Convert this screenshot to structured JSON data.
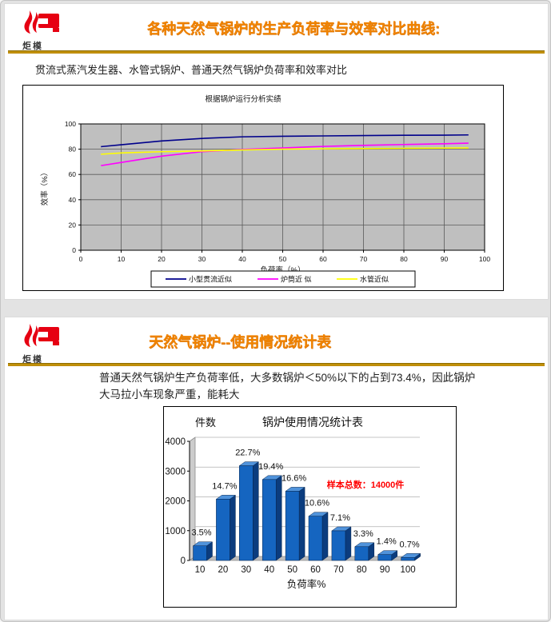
{
  "logo": {
    "name": "炬橂",
    "color": "#E60012"
  },
  "slide1": {
    "title": "各种天然气锅炉的生产负荷率与效率对比曲线:",
    "title_color": "#F08300",
    "underline_color": "#B8860B",
    "subtitle": "贯流式蒸汽发生器、水管式锅炉、普通天然气锅炉负荷率和效率对比"
  },
  "slide2": {
    "title": "天然气锅炉--使用情况统计表",
    "body": "普通天然气锅炉生产负荷率低，大多数锅炉＜50%以下的占到73.4%，因此锅炉大马拉小车现象严重，能耗大"
  },
  "chart_data": [
    {
      "type": "line",
      "title": "根据锅炉运行分析实绩",
      "xlabel": "负荷率（%）",
      "ylabel": "效率（%）",
      "xlim": [
        0,
        100
      ],
      "ylim": [
        0,
        100
      ],
      "xticks": [
        0,
        10,
        20,
        30,
        40,
        50,
        60,
        70,
        80,
        90,
        100
      ],
      "yticks": [
        0,
        20,
        40,
        60,
        80,
        100
      ],
      "grid": true,
      "plot_bg": "#BFBFBF",
      "legend_position": "bottom",
      "x": [
        5,
        10,
        20,
        30,
        40,
        50,
        60,
        70,
        80,
        90,
        96
      ],
      "series": [
        {
          "name": "小型贯流近似",
          "color": "#00008B",
          "values": [
            82,
            83.5,
            86.5,
            88.5,
            89.8,
            90.2,
            90.5,
            90.8,
            91,
            91.1,
            91.3
          ]
        },
        {
          "name": "炉筒近 似",
          "color": "#FF00FF",
          "values": [
            67,
            69.5,
            74.5,
            78,
            79.8,
            81,
            82.2,
            83,
            83.7,
            84.3,
            84.8
          ]
        },
        {
          "name": "水管近似",
          "color": "#FFFF00",
          "values": [
            76,
            77,
            78,
            78.6,
            79.4,
            80,
            80.3,
            80.5,
            80.7,
            80.9,
            81
          ]
        }
      ]
    },
    {
      "type": "bar",
      "title": "锅炉使用情况统计表",
      "xlabel": "负荷率%",
      "ylabel": "件数",
      "ylim": [
        0,
        4000
      ],
      "yticks": [
        0,
        1000,
        2000,
        3000,
        4000
      ],
      "categories": [
        "10",
        "20",
        "30",
        "40",
        "50",
        "60",
        "70",
        "80",
        "90",
        "100"
      ],
      "values": [
        490,
        2058,
        3178,
        2716,
        2324,
        1484,
        994,
        462,
        196,
        98
      ],
      "bar_labels": [
        "3.5%",
        "14.7%",
        "22.7%",
        "19.4%",
        "16.6%",
        "10.6%",
        "7.1%",
        "3.3%",
        "1.4%",
        "0.7%"
      ],
      "annotation": "样本总数：14000件",
      "annotation_color": "#FF0000",
      "bar_color": "#1565C0",
      "bar_top_color": "#5093DB",
      "bar_side_color": "#0B3C7E"
    }
  ]
}
